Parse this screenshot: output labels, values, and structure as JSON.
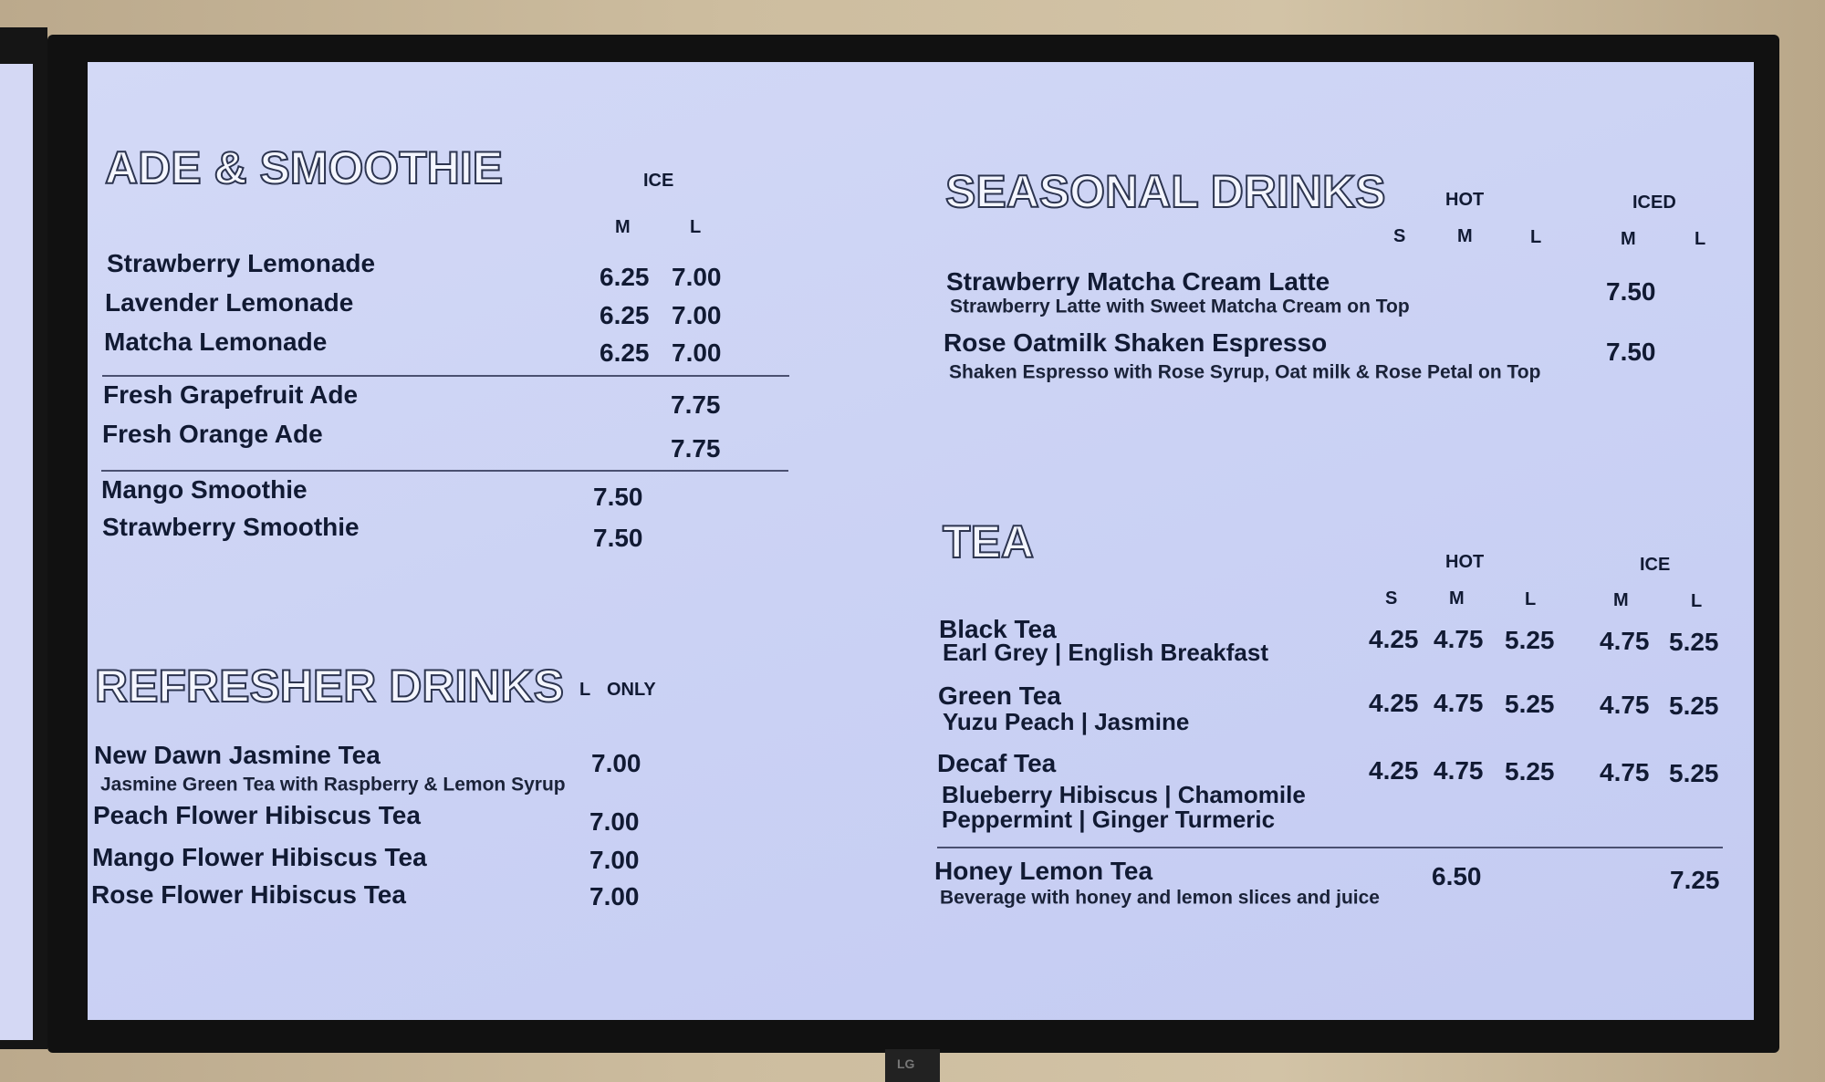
{
  "colors": {
    "screen": "#cbd2f4",
    "text": "#111a33",
    "frame": "#111111"
  },
  "brand": "LG",
  "ade": {
    "title": "ADE & SMOOTHIE",
    "col_group": "ICE",
    "cols": [
      "M",
      "L"
    ],
    "items": [
      {
        "name": "Strawberry Lemonade",
        "m": "6.25",
        "l": "7.00"
      },
      {
        "name": "Lavender Lemonade",
        "m": "6.25",
        "l": "7.00"
      },
      {
        "name": "Matcha Lemonade",
        "m": "6.25",
        "l": "7.00"
      },
      {
        "name": "Fresh Grapefruit Ade",
        "l": "7.75"
      },
      {
        "name": "Fresh Orange Ade",
        "l": "7.75"
      },
      {
        "name": "Mango Smoothie",
        "m": "7.50"
      },
      {
        "name": "Strawberry Smoothie",
        "m": "7.50"
      }
    ]
  },
  "refresher": {
    "title": "REFRESHER DRINKS",
    "col_l": "L",
    "col_only": "ONLY",
    "items": [
      {
        "name": "New Dawn Jasmine Tea",
        "desc": "Jasmine Green Tea with Raspberry & Lemon Syrup",
        "price": "7.00"
      },
      {
        "name": "Peach Flower Hibiscus Tea",
        "price": "7.00"
      },
      {
        "name": "Mango Flower Hibiscus Tea",
        "price": "7.00"
      },
      {
        "name": "Rose Flower Hibiscus Tea",
        "price": "7.00"
      }
    ]
  },
  "seasonal": {
    "title": "SEASONAL DRINKS",
    "hot": "HOT",
    "iced": "ICED",
    "cols": [
      "S",
      "M",
      "L",
      "M",
      "L"
    ],
    "items": [
      {
        "name": "Strawberry Matcha Cream Latte",
        "desc": "Strawberry Latte with Sweet Matcha Cream on Top",
        "iced_m": "7.50"
      },
      {
        "name": "Rose Oatmilk Shaken Espresso",
        "desc": "Shaken Espresso with Rose Syrup, Oat milk & Rose Petal on Top",
        "iced_m": "7.50"
      }
    ]
  },
  "tea": {
    "title": "TEA",
    "hot": "HOT",
    "ice": "ICE",
    "cols": [
      "S",
      "M",
      "L",
      "M",
      "L"
    ],
    "items": [
      {
        "name": "Black Tea",
        "sub": [
          "Earl Grey | English Breakfast"
        ],
        "prices": [
          "4.25",
          "4.75",
          "5.25",
          "4.75",
          "5.25"
        ]
      },
      {
        "name": "Green Tea",
        "sub": [
          "Yuzu Peach | Jasmine"
        ],
        "prices": [
          "4.25",
          "4.75",
          "5.25",
          "4.75",
          "5.25"
        ]
      },
      {
        "name": "Decaf Tea",
        "sub": [
          "Blueberry Hibiscus | Chamomile",
          "Peppermint | Ginger Turmeric"
        ],
        "prices": [
          "4.25",
          "4.75",
          "5.25",
          "4.75",
          "5.25"
        ]
      },
      {
        "name": "Honey Lemon Tea",
        "desc": "Beverage with honey and lemon slices and juice",
        "hot": "6.50",
        "ice": "7.25"
      }
    ]
  }
}
